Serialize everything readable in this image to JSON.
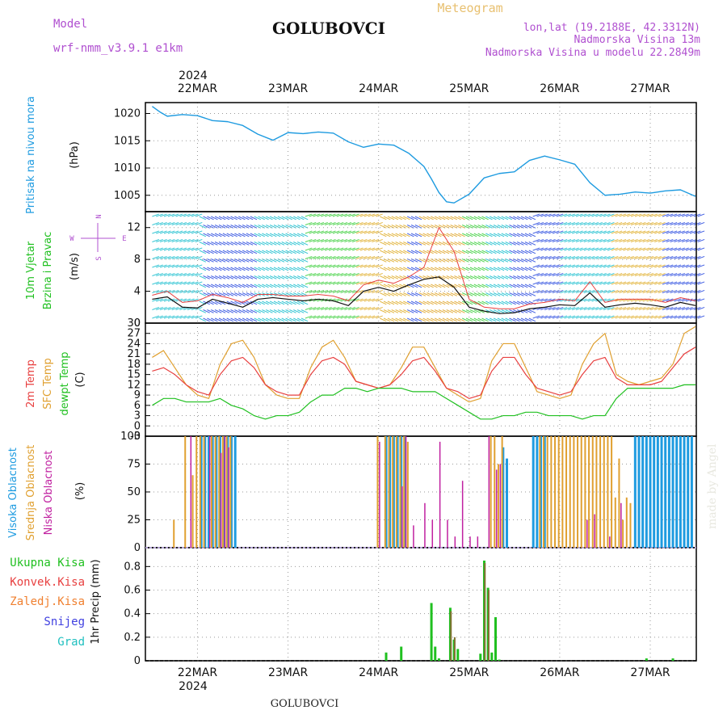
{
  "header": {
    "model_label": "Model",
    "model_name": "wrf-nmm_v3.9.1 e1km",
    "station": "GOLUBOVCI",
    "chart_title": "Meteogram",
    "lonlat": "lon,lat (19.2188E, 42.3312N)",
    "elevation": "Nadmorska Visina 13m",
    "model_elevation": "Nadmorska Visina u modelu 22.2849m",
    "footer_station": "GOLUBOVCI",
    "watermark": "made by Angel"
  },
  "colors": {
    "pressure": "#1e9be0",
    "temp2m": "#e84040",
    "sfc_temp": "#e0a030",
    "dewpt": "#20c020",
    "cloud_high": "#1e9be0",
    "cloud_mid": "#e0a030",
    "cloud_low": "#c020a0",
    "precip_total": "#20c020",
    "precip_conv": "#e84040",
    "precip_frozen": "#f08030",
    "snow": "#4040e0",
    "hail": "#20c0c0",
    "title_purple": "#b050d0",
    "title_orange": "#e8c070"
  },
  "axes": {
    "top_year": "2024",
    "bottom_year": "2024",
    "days": [
      "22MAR",
      "23MAR",
      "24MAR",
      "25MAR",
      "26MAR",
      "27MAR"
    ]
  },
  "chart_data": [
    {
      "type": "line",
      "panel": "pressure",
      "ylabel_1": "Pritisak na nivou mora",
      "ylabel_2": "(hPa)",
      "yticks": [
        "1020",
        "1015",
        "1010",
        "1005"
      ],
      "ylim": [
        1002,
        1022
      ],
      "x_hours": [
        0,
        2,
        4,
        8,
        12,
        16,
        20,
        24,
        28,
        32,
        36,
        40,
        44,
        48,
        52,
        56,
        60,
        64,
        68,
        72,
        74,
        76,
        78,
        80,
        84,
        88,
        92,
        96,
        100,
        104,
        108,
        112,
        116,
        120,
        124,
        128,
        132,
        136,
        140,
        144
      ],
      "series": [
        {
          "name": "pressure",
          "values": [
            1021.3,
            1020.3,
            1019.5,
            1019.8,
            1019.6,
            1018.7,
            1018.5,
            1017.8,
            1016.2,
            1015.1,
            1016.5,
            1016.3,
            1016.6,
            1016.4,
            1014.8,
            1013.8,
            1014.4,
            1014.2,
            1012.7,
            1010.3,
            1008.0,
            1005.5,
            1003.8,
            1003.6,
            1005.2,
            1008.2,
            1009.0,
            1009.3,
            1011.4,
            1012.2,
            1011.5,
            1010.7,
            1007.3,
            1005.0,
            1005.2,
            1005.6,
            1005.4,
            1005.8,
            1006.0,
            1004.8
          ]
        }
      ]
    },
    {
      "type": "line",
      "panel": "wind",
      "ylabel_1": "10m Vjetar",
      "ylabel_2": "Brzina i Pravac",
      "ylabel_3": "(m/s)",
      "compass_n": "N",
      "compass_w": "W",
      "compass_e": "E",
      "compass_s": "S",
      "yticks": [
        "12",
        "8",
        "4",
        "0"
      ],
      "ylim": [
        0,
        14
      ],
      "x_hours": [
        0,
        4,
        8,
        12,
        16,
        20,
        24,
        28,
        32,
        36,
        40,
        44,
        48,
        52,
        56,
        60,
        64,
        68,
        72,
        76,
        80,
        84,
        88,
        92,
        96,
        100,
        104,
        108,
        112,
        116,
        120,
        124,
        128,
        132,
        136,
        140,
        144
      ],
      "series": [
        {
          "name": "speed",
          "values": [
            3.0,
            3.3,
            2.0,
            1.9,
            3.0,
            2.5,
            2.0,
            3.0,
            3.2,
            3.0,
            2.8,
            3.0,
            2.8,
            2.2,
            4.0,
            4.5,
            4.0,
            4.8,
            5.5,
            5.8,
            4.5,
            2.0,
            1.5,
            1.2,
            1.3,
            1.8,
            2.0,
            2.3,
            2.2,
            3.8,
            2.0,
            2.3,
            2.5,
            2.3,
            2.0,
            2.6,
            2.2
          ]
        },
        {
          "name": "gust",
          "values": [
            3.5,
            4.0,
            2.6,
            2.8,
            3.6,
            3.2,
            2.6,
            3.6,
            3.6,
            3.4,
            3.4,
            3.6,
            3.4,
            2.8,
            4.8,
            5.4,
            5.0,
            5.8,
            7.0,
            12.0,
            9.0,
            3.0,
            2.0,
            1.8,
            1.8,
            2.4,
            2.6,
            3.0,
            2.8,
            5.2,
            2.6,
            3.0,
            3.0,
            3.0,
            2.6,
            3.2,
            2.8
          ]
        }
      ]
    },
    {
      "type": "line",
      "panel": "temperature",
      "ylabel_1": "2m Temp",
      "ylabel_2": "SFC Temp",
      "ylabel_3": "dewpt Temp",
      "ylabel_4": "(C)",
      "yticks": [
        "30",
        "27",
        "24",
        "21",
        "18",
        "15",
        "12",
        "9",
        "6",
        "3",
        "0",
        "-3"
      ],
      "ylim": [
        -3,
        30
      ],
      "x_hours": [
        0,
        3,
        6,
        9,
        12,
        15,
        18,
        21,
        24,
        27,
        30,
        33,
        36,
        39,
        42,
        45,
        48,
        51,
        54,
        57,
        60,
        63,
        66,
        69,
        72,
        75,
        78,
        81,
        84,
        87,
        90,
        93,
        96,
        99,
        102,
        105,
        108,
        111,
        114,
        117,
        120,
        123,
        126,
        129,
        132,
        135,
        138,
        141,
        144
      ],
      "series": [
        {
          "name": "2m Temp",
          "values": [
            16,
            17,
            15,
            12,
            10,
            9,
            15,
            19,
            20,
            17,
            12,
            10,
            9,
            9,
            15,
            19,
            20,
            18,
            13,
            12,
            11,
            12,
            15,
            19,
            20,
            16,
            11,
            10,
            8,
            9,
            16,
            20,
            20,
            15,
            11,
            10,
            9,
            10,
            15,
            19,
            20,
            14,
            12,
            12,
            12,
            13,
            17,
            21,
            23
          ]
        },
        {
          "name": "SFC Temp",
          "values": [
            20,
            22,
            17,
            12,
            9,
            8,
            18,
            24,
            25,
            20,
            12,
            9,
            8,
            8,
            17,
            23,
            25,
            20,
            13,
            12,
            11,
            12,
            17,
            23,
            23,
            17,
            11,
            9,
            7,
            8,
            19,
            24,
            24,
            17,
            10,
            9,
            8,
            9,
            18,
            24,
            27,
            15,
            13,
            12,
            13,
            14,
            18,
            27,
            29
          ]
        },
        {
          "name": "dewpt Temp",
          "values": [
            6,
            8,
            8,
            7,
            7,
            7,
            8,
            6,
            5,
            3,
            2,
            3,
            3,
            4,
            7,
            9,
            9,
            11,
            11,
            10,
            11,
            11,
            11,
            10,
            10,
            10,
            8,
            6,
            4,
            2,
            2,
            3,
            3,
            4,
            4,
            3,
            3,
            3,
            2,
            3,
            3,
            8,
            11,
            11,
            11,
            11,
            11,
            12,
            12
          ]
        }
      ]
    },
    {
      "type": "bar",
      "panel": "clouds",
      "ylabel_1": "Visoka Oblacnost",
      "ylabel_2": "Srednja Oblacnost",
      "ylabel_3": "Niska Oblacnost",
      "ylabel_4": "(%)",
      "yticks": [
        "100",
        "75",
        "50",
        "25",
        "0"
      ],
      "ylim": [
        0,
        100
      ],
      "series": [
        {
          "name": "high",
          "x": [
            13,
            14,
            15,
            16,
            17,
            18,
            19,
            20,
            21,
            22,
            62,
            63,
            64,
            65,
            66,
            67,
            93,
            94,
            101,
            102,
            103,
            104,
            128,
            129,
            130,
            131,
            132,
            133,
            134,
            135,
            136,
            137,
            138,
            139,
            140,
            141,
            142,
            143
          ],
          "values": [
            100,
            100,
            100,
            100,
            100,
            100,
            100,
            100,
            100,
            100,
            100,
            100,
            100,
            100,
            100,
            100,
            90,
            80,
            100,
            100,
            100,
            100,
            100,
            100,
            100,
            100,
            100,
            100,
            100,
            100,
            100,
            100,
            100,
            100,
            100,
            100,
            100,
            100
          ]
        },
        {
          "name": "mid",
          "x": [
            6,
            9,
            11,
            12,
            13,
            14,
            16,
            17,
            18,
            19,
            20,
            21,
            60,
            62,
            63,
            64,
            65,
            66,
            67,
            68,
            90,
            91,
            92,
            93,
            103,
            104,
            105,
            106,
            107,
            108,
            109,
            110,
            111,
            112,
            113,
            114,
            115,
            116,
            117,
            118,
            119,
            120,
            121,
            122,
            123,
            124,
            125,
            126,
            127
          ],
          "values": [
            25,
            100,
            65,
            100,
            100,
            100,
            100,
            100,
            100,
            100,
            100,
            100,
            100,
            100,
            100,
            100,
            100,
            100,
            100,
            95,
            100,
            100,
            75,
            100,
            100,
            100,
            100,
            100,
            100,
            100,
            100,
            100,
            100,
            100,
            100,
            100,
            100,
            100,
            100,
            100,
            100,
            100,
            100,
            100,
            45,
            80,
            25,
            45,
            40
          ]
        },
        {
          "name": "low",
          "x": [
            10,
            15,
            18,
            19,
            20,
            60,
            66,
            67,
            69,
            72,
            74,
            76,
            78,
            80,
            82,
            84,
            86,
            89,
            91,
            92,
            115,
            117,
            121,
            124
          ],
          "values": [
            100,
            100,
            85,
            100,
            90,
            95,
            55,
            100,
            20,
            40,
            25,
            95,
            25,
            10,
            60,
            10,
            10,
            100,
            70,
            75,
            25,
            30,
            10,
            40
          ]
        }
      ]
    },
    {
      "type": "bar",
      "panel": "precip",
      "ylabel_1": "1hr Precip (mm)",
      "legend": [
        "Ukupna Kisa",
        "Konvek.Kisa",
        "Zaledj.Kisa",
        "Snijeg",
        "Grad"
      ],
      "yticks": [
        "0.8",
        "0.6",
        "0.4",
        "0.2",
        "0"
      ],
      "ylim": [
        0,
        0.96
      ],
      "series": [
        {
          "name": "Ukupna Kisa",
          "x": [
            62,
            66,
            74,
            75,
            76,
            79,
            80,
            81,
            87,
            88,
            89,
            90,
            91,
            92,
            131,
            138
          ],
          "values": [
            0.07,
            0.12,
            0.49,
            0.12,
            0.02,
            0.45,
            0.18,
            0.1,
            0.06,
            0.85,
            0.62,
            0.07,
            0.37,
            0.01,
            0.02,
            0.02
          ]
        },
        {
          "name": "Konvek.Kisa",
          "x": [
            79,
            80,
            88,
            89
          ],
          "values": [
            0.42,
            0.2,
            0.83,
            0.6
          ]
        }
      ]
    }
  ]
}
